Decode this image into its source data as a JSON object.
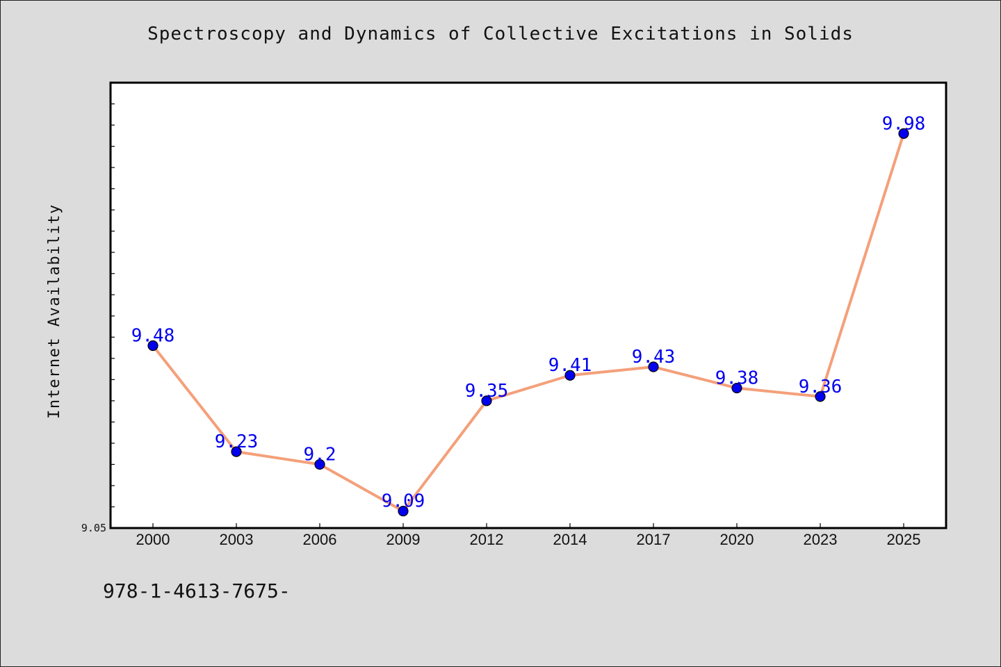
{
  "chart_data": {
    "type": "line",
    "title": "Spectroscopy and Dynamics of Collective Excitations in Solids",
    "xlabel": "",
    "ylabel": "Internet Availability",
    "categories": [
      "2000",
      "2003",
      "2006",
      "2009",
      "2012",
      "2014",
      "2017",
      "2020",
      "2023",
      "2025"
    ],
    "series": [
      {
        "values": [
          9.48,
          9.23,
          9.2,
          9.09,
          9.35,
          9.41,
          9.43,
          9.38,
          9.36,
          9.98
        ],
        "data_labels": [
          "9.48",
          "9.23",
          "9.2",
          "9.09",
          "9.35",
          "9.41",
          "9.43",
          "9.38",
          "9.36",
          "9.98"
        ],
        "line_color": "#f4a07a",
        "marker_color": "#0000ee",
        "label_color": "#0000ee"
      }
    ],
    "ylim": [
      9.05,
      10.1
    ],
    "y_tick_labels": [
      "9.05"
    ],
    "y_minor_tick_step": 0.05,
    "grid": false,
    "legend": "none"
  },
  "footer": {
    "code": "978-1-4613-7675-"
  }
}
